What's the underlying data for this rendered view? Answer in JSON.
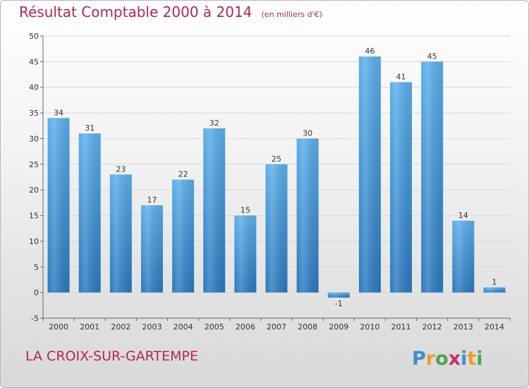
{
  "header": {
    "title": "Résultat Comptable 2000 à 2014",
    "unit": "(en milliers d'€)"
  },
  "footer": {
    "commune": "LA CROIX-SUR-GARTEMPE",
    "logo_text": "Proxiti"
  },
  "colors": {
    "title": "#b3245c",
    "bar_light": "#5aaeea",
    "bar_dark": "#2a78be",
    "grid": "#d8d8d8"
  },
  "chart_data": {
    "type": "bar",
    "categories": [
      "2000",
      "2001",
      "2002",
      "2003",
      "2004",
      "2005",
      "2006",
      "2007",
      "2008",
      "2009",
      "2010",
      "2011",
      "2012",
      "2013",
      "2014"
    ],
    "values": [
      34,
      31,
      23,
      17,
      22,
      32,
      15,
      25,
      30,
      -1,
      46,
      41,
      45,
      14,
      1
    ],
    "data_labels": [
      "34",
      "31",
      "23",
      "17",
      "22",
      "32",
      "15",
      "25",
      "30",
      "-1",
      "46",
      "41",
      "45",
      "14",
      "1"
    ],
    "ylim": [
      -5,
      50
    ],
    "yticks": [
      -5,
      0,
      5,
      10,
      15,
      20,
      25,
      30,
      35,
      40,
      45,
      50
    ],
    "grid": true,
    "legend": "none"
  }
}
